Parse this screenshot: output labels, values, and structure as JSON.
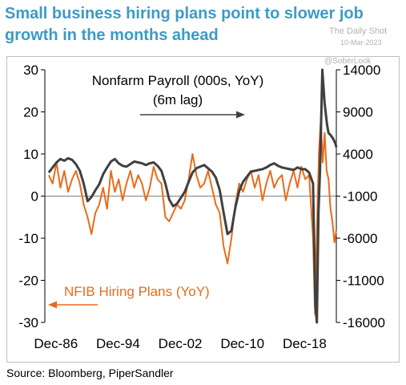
{
  "title": "Small business hiring plans point to slower job growth in the months ahead",
  "watermark": {
    "line1": "The Daily Shot",
    "line2": "10-Mar-2023",
    "handle": "@SoberLook"
  },
  "source": "Source: Bloomberg, PiperSandler",
  "colors": {
    "nfib": "#e86b1a",
    "payroll": "#404040",
    "title": "#3c9bc6"
  },
  "chart_data": {
    "type": "line",
    "x_tick_labels": [
      "Dec-86",
      "Dec-94",
      "Dec-02",
      "Dec-10",
      "Dec-18"
    ],
    "x_tick_years": [
      1986.92,
      1994.92,
      2002.92,
      2010.92,
      2018.92
    ],
    "xlim": [
      1985.5,
      2023.0
    ],
    "left_axis": {
      "ticks": [
        30,
        20,
        10,
        0,
        -10,
        -20,
        -30
      ],
      "ylim": [
        -30,
        30
      ]
    },
    "right_axis": {
      "ticks": [
        14000,
        9000,
        4000,
        -1000,
        -6000,
        -11000,
        -16000
      ],
      "ylim": [
        -16000,
        14000
      ]
    },
    "grid": false,
    "annotations": [
      {
        "text": "Nonfarm Payroll (000s, YoY)"
      },
      {
        "text": "(6m lag)"
      },
      {
        "text": "NFIB Hiring Plans (YoY)"
      }
    ],
    "series": [
      {
        "axis": "left",
        "x": [
          1986.0,
          1986.5,
          1987.0,
          1987.5,
          1988.0,
          1988.5,
          1989.0,
          1989.5,
          1990.0,
          1990.5,
          1991.0,
          1991.5,
          1992.0,
          1992.5,
          1993.0,
          1993.5,
          1994.0,
          1994.5,
          1995.0,
          1995.5,
          1996.0,
          1996.5,
          1997.0,
          1997.5,
          1998.0,
          1998.5,
          1999.0,
          1999.5,
          2000.0,
          2000.5,
          2001.0,
          2001.5,
          2002.0,
          2002.5,
          2003.0,
          2003.5,
          2004.0,
          2004.5,
          2005.0,
          2005.5,
          2006.0,
          2006.5,
          2007.0,
          2007.5,
          2008.0,
          2008.5,
          2009.0,
          2009.5,
          2010.0,
          2010.5,
          2011.0,
          2011.5,
          2012.0,
          2012.5,
          2013.0,
          2013.5,
          2014.0,
          2014.5,
          2015.0,
          2015.5,
          2016.0,
          2016.5,
          2017.0,
          2017.5,
          2018.0,
          2018.5,
          2019.0,
          2019.5,
          2020.0,
          2020.25,
          2020.5,
          2020.75,
          2021.0,
          2021.25,
          2021.5,
          2021.75,
          2022.0,
          2022.25,
          2022.5,
          2022.75,
          2023.0
        ],
        "values": [
          5,
          3,
          8,
          2,
          6,
          1,
          4,
          6,
          3,
          -2,
          -5,
          -9,
          -4,
          -2,
          2,
          -3,
          6,
          1,
          4,
          -1,
          3,
          6,
          2,
          5,
          3,
          -1,
          2,
          7,
          4,
          3,
          -5,
          -6,
          -4,
          -2,
          -3,
          -1,
          4,
          10,
          5,
          2,
          3,
          6,
          2,
          -2,
          -4,
          -12,
          -16,
          -10,
          -2,
          3,
          1,
          4,
          6,
          2,
          5,
          -1,
          3,
          6,
          2,
          4,
          5,
          -1,
          3,
          6,
          2,
          7,
          4,
          5,
          -10,
          -28,
          -8,
          10,
          18,
          8,
          15,
          6,
          4,
          -3,
          -6,
          -11,
          -8
        ]
      },
      {
        "axis": "right",
        "x": [
          1986.0,
          1986.5,
          1987.0,
          1987.5,
          1988.0,
          1988.5,
          1989.0,
          1989.5,
          1990.0,
          1990.5,
          1991.0,
          1991.5,
          1992.0,
          1992.5,
          1993.0,
          1993.5,
          1994.0,
          1994.5,
          1995.0,
          1995.5,
          1996.0,
          1996.5,
          1997.0,
          1997.5,
          1998.0,
          1998.5,
          1999.0,
          1999.5,
          2000.0,
          2000.5,
          2001.0,
          2001.5,
          2002.0,
          2002.5,
          2003.0,
          2003.5,
          2004.0,
          2004.5,
          2005.0,
          2005.5,
          2006.0,
          2006.5,
          2007.0,
          2007.5,
          2008.0,
          2008.5,
          2009.0,
          2009.5,
          2010.0,
          2010.5,
          2011.0,
          2011.5,
          2012.0,
          2012.5,
          2013.0,
          2013.5,
          2014.0,
          2014.5,
          2015.0,
          2015.5,
          2016.0,
          2016.5,
          2017.0,
          2017.5,
          2018.0,
          2018.5,
          2019.0,
          2019.5,
          2020.0,
          2020.3,
          2020.5,
          2020.7,
          2020.9,
          2021.2,
          2021.5,
          2021.8,
          2022.0,
          2022.3,
          2022.6,
          2022.9,
          2023.0
        ],
        "values": [
          1800,
          2400,
          3000,
          3400,
          3200,
          3500,
          3300,
          2800,
          2000,
          500,
          -1600,
          -1100,
          -300,
          400,
          1600,
          2400,
          3100,
          3400,
          2900,
          2600,
          2500,
          2800,
          3100,
          3000,
          2900,
          2700,
          2900,
          3000,
          2600,
          2000,
          500,
          -1400,
          -2200,
          -1900,
          -1200,
          -500,
          700,
          1800,
          2300,
          2500,
          2700,
          2300,
          1900,
          1200,
          -300,
          -3000,
          -5500,
          -5100,
          -2400,
          -400,
          700,
          1300,
          1900,
          2000,
          2100,
          2200,
          2400,
          2700,
          2900,
          2600,
          2400,
          2300,
          2200,
          2100,
          2400,
          2200,
          2200,
          1800,
          500,
          -14000,
          -16000,
          -3000,
          2000,
          14000,
          10000,
          7500,
          6500,
          6200,
          5800,
          5200,
          4800
        ]
      }
    ]
  }
}
